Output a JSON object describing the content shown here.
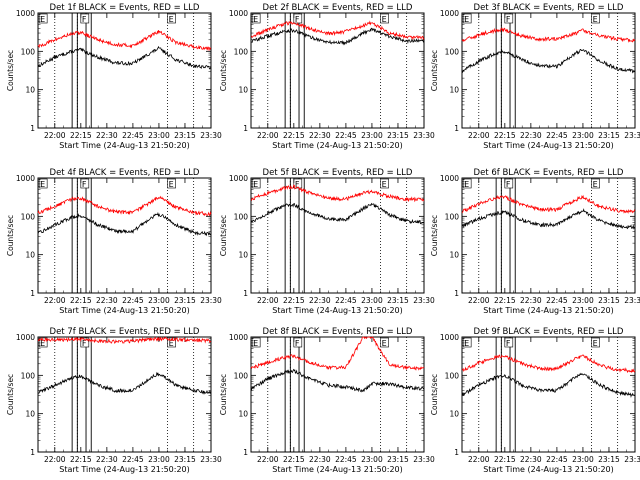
{
  "figure": {
    "x_ticks": [
      "22:00",
      "22:15",
      "22:30",
      "22:45",
      "23:00",
      "23:15",
      "23:30"
    ],
    "y_ticks": [
      "1",
      "10",
      "100",
      "1000"
    ],
    "xlabel": "Start Time (24-Aug-13 21:50:20)",
    "ylabel": "Counts/sec"
  },
  "colors": {
    "events": "#000000",
    "lld": "#ff0000",
    "background": "#ffffff"
  },
  "chart_data": [
    {
      "type": "line",
      "title": "Det 1f BLACK = Events, RED = LLD",
      "xlabel": "Start Time (24-Aug-13 21:50:20)",
      "ylabel": "Counts/sec",
      "yscale": "log",
      "ylim": [
        1,
        1000
      ],
      "x_ticks": [
        "22:00",
        "22:15",
        "22:30",
        "22:45",
        "23:00",
        "23:15",
        "23:30"
      ],
      "flag_labels": [
        "E",
        "F",
        "E"
      ],
      "x": [
        "21:50",
        "22:00",
        "22:10",
        "22:15",
        "22:25",
        "22:35",
        "22:45",
        "22:55",
        "23:00",
        "23:10",
        "23:20",
        "23:30"
      ],
      "series": [
        {
          "name": "BLACK = Events",
          "values": [
            40,
            70,
            100,
            110,
            70,
            50,
            48,
            90,
            120,
            60,
            42,
            38
          ]
        },
        {
          "name": "RED = LLD",
          "values": [
            130,
            200,
            290,
            310,
            200,
            150,
            140,
            250,
            330,
            170,
            130,
            120
          ]
        }
      ]
    },
    {
      "type": "line",
      "title": "Det 2f BLACK = Events, RED = LLD",
      "xlabel": "Start Time (24-Aug-13 21:50:20)",
      "ylabel": "Counts/sec",
      "yscale": "log",
      "ylim": [
        1,
        1000
      ],
      "x_ticks": [
        "22:00",
        "22:15",
        "22:30",
        "22:45",
        "23:00",
        "23:15",
        "23:30"
      ],
      "flag_labels": [
        "E",
        "F",
        "E"
      ],
      "x": [
        "21:50",
        "22:00",
        "22:10",
        "22:15",
        "22:25",
        "22:35",
        "22:45",
        "22:55",
        "23:00",
        "23:10",
        "23:20",
        "23:30"
      ],
      "series": [
        {
          "name": "BLACK = Events",
          "values": [
            180,
            250,
            340,
            350,
            230,
            170,
            170,
            300,
            390,
            240,
            190,
            180
          ]
        },
        {
          "name": "RED = LLD",
          "values": [
            230,
            370,
            530,
            560,
            380,
            290,
            330,
            470,
            560,
            300,
            240,
            230
          ]
        }
      ]
    },
    {
      "type": "line",
      "title": "Det 3f BLACK = Events, RED = LLD",
      "xlabel": "Start Time (24-Aug-13 21:50:20)",
      "ylabel": "Counts/sec",
      "yscale": "log",
      "ylim": [
        1,
        1000
      ],
      "x_ticks": [
        "22:00",
        "22:15",
        "22:30",
        "22:45",
        "23:00",
        "23:15",
        "23:30"
      ],
      "flag_labels": [
        "E",
        "F",
        "E"
      ],
      "x": [
        "21:50",
        "22:00",
        "22:10",
        "22:15",
        "22:25",
        "22:35",
        "22:45",
        "22:55",
        "23:00",
        "23:10",
        "23:20",
        "23:30"
      ],
      "series": [
        {
          "name": "BLACK = Events",
          "values": [
            30,
            55,
            90,
            100,
            60,
            42,
            40,
            85,
            110,
            55,
            35,
            30
          ]
        },
        {
          "name": "RED = LLD",
          "values": [
            180,
            270,
            350,
            370,
            250,
            210,
            210,
            280,
            360,
            250,
            210,
            190
          ]
        }
      ]
    },
    {
      "type": "line",
      "title": "Det 4f BLACK = Events, RED = LLD",
      "xlabel": "Start Time (24-Aug-13 21:50:20)",
      "ylabel": "Counts/sec",
      "yscale": "log",
      "ylim": [
        1,
        1000
      ],
      "x_ticks": [
        "22:00",
        "22:15",
        "22:30",
        "22:45",
        "23:00",
        "23:15",
        "23:30"
      ],
      "flag_labels": [
        "E",
        "F",
        "E"
      ],
      "x": [
        "21:50",
        "22:00",
        "22:10",
        "22:15",
        "22:25",
        "22:35",
        "22:45",
        "22:55",
        "23:00",
        "23:10",
        "23:20",
        "23:30"
      ],
      "series": [
        {
          "name": "BLACK = Events",
          "values": [
            35,
            60,
            95,
            105,
            60,
            42,
            40,
            90,
            115,
            60,
            38,
            34
          ]
        },
        {
          "name": "RED = LLD",
          "values": [
            120,
            180,
            280,
            300,
            180,
            130,
            125,
            230,
            320,
            170,
            125,
            115
          ]
        }
      ]
    },
    {
      "type": "line",
      "title": "Det 5f BLACK = Events, RED = LLD",
      "xlabel": "Start Time (24-Aug-13 21:50:20)",
      "ylabel": "Counts/sec",
      "yscale": "log",
      "ylim": [
        1,
        1000
      ],
      "x_ticks": [
        "22:00",
        "22:15",
        "22:30",
        "22:45",
        "23:00",
        "23:15",
        "23:30"
      ],
      "flag_labels": [
        "E",
        "F",
        "E"
      ],
      "x": [
        "21:50",
        "22:00",
        "22:10",
        "22:15",
        "22:25",
        "22:35",
        "22:45",
        "22:55",
        "23:00",
        "23:10",
        "23:20",
        "23:30"
      ],
      "series": [
        {
          "name": "BLACK = Events",
          "values": [
            70,
            120,
            190,
            200,
            120,
            85,
            80,
            160,
            210,
            110,
            75,
            70
          ]
        },
        {
          "name": "RED = LLD",
          "values": [
            280,
            400,
            560,
            590,
            400,
            290,
            280,
            410,
            440,
            330,
            280,
            270
          ]
        }
      ]
    },
    {
      "type": "line",
      "title": "Det 6f BLACK = Events, RED = LLD",
      "xlabel": "Start Time (24-Aug-13 21:50:20)",
      "ylabel": "Counts/sec",
      "yscale": "log",
      "ylim": [
        1,
        1000
      ],
      "x_ticks": [
        "22:00",
        "22:15",
        "22:30",
        "22:45",
        "23:00",
        "23:15",
        "23:30"
      ],
      "flag_labels": [
        "E",
        "F",
        "E"
      ],
      "x": [
        "21:50",
        "22:00",
        "22:10",
        "22:15",
        "22:25",
        "22:35",
        "22:45",
        "22:55",
        "23:00",
        "23:10",
        "23:20",
        "23:30"
      ],
      "series": [
        {
          "name": "BLACK = Events",
          "values": [
            55,
            85,
            120,
            130,
            80,
            60,
            60,
            110,
            140,
            75,
            55,
            52
          ]
        },
        {
          "name": "RED = LLD",
          "values": [
            130,
            210,
            300,
            320,
            200,
            150,
            150,
            260,
            320,
            180,
            140,
            135
          ]
        }
      ]
    },
    {
      "type": "line",
      "title": "Det 7f BLACK = Events, RED = LLD",
      "xlabel": "Start Time (24-Aug-13 21:50:20)",
      "ylabel": "Counts/sec",
      "yscale": "log",
      "ylim": [
        1,
        1000
      ],
      "x_ticks": [
        "22:00",
        "22:15",
        "22:30",
        "22:45",
        "23:00",
        "23:15",
        "23:30"
      ],
      "flag_labels": [
        "E",
        "F",
        "E"
      ],
      "x": [
        "21:50",
        "22:00",
        "22:10",
        "22:15",
        "22:25",
        "22:35",
        "22:45",
        "22:55",
        "23:00",
        "23:10",
        "23:20",
        "23:30"
      ],
      "series": [
        {
          "name": "BLACK = Events",
          "values": [
            35,
            55,
            85,
            95,
            55,
            40,
            40,
            85,
            110,
            55,
            40,
            35
          ]
        },
        {
          "name": "RED = LLD",
          "values": [
            850,
            830,
            870,
            880,
            800,
            760,
            780,
            870,
            900,
            860,
            820,
            800
          ]
        }
      ]
    },
    {
      "type": "line",
      "title": "Det 8f BLACK = Events, RED = LLD",
      "xlabel": "Start Time (24-Aug-13 21:50:20)",
      "ylabel": "Counts/sec",
      "yscale": "log",
      "ylim": [
        1,
        1000
      ],
      "x_ticks": [
        "22:00",
        "22:15",
        "22:30",
        "22:45",
        "23:00",
        "23:15",
        "23:30"
      ],
      "flag_labels": [
        "E",
        "F",
        "E"
      ],
      "x": [
        "21:50",
        "22:00",
        "22:10",
        "22:15",
        "22:25",
        "22:35",
        "22:45",
        "22:55",
        "23:00",
        "23:10",
        "23:20",
        "23:30"
      ],
      "series": [
        {
          "name": "BLACK = Events",
          "values": [
            45,
            80,
            120,
            130,
            80,
            55,
            50,
            40,
            60,
            60,
            48,
            45
          ]
        },
        {
          "name": "RED = LLD",
          "values": [
            150,
            220,
            300,
            320,
            210,
            160,
            160,
            1000,
            1000,
            190,
            160,
            150
          ]
        }
      ]
    },
    {
      "type": "line",
      "title": "Det 9f BLACK = Events, RED = LLD",
      "xlabel": "Start Time (24-Aug-13 21:50:20)",
      "ylabel": "Counts/sec",
      "yscale": "log",
      "ylim": [
        1,
        1000
      ],
      "x_ticks": [
        "22:00",
        "22:15",
        "22:30",
        "22:45",
        "23:00",
        "23:15",
        "23:30"
      ],
      "flag_labels": [
        "E",
        "F",
        "E"
      ],
      "x": [
        "21:50",
        "22:00",
        "22:10",
        "22:15",
        "22:25",
        "22:35",
        "22:45",
        "22:55",
        "23:00",
        "23:10",
        "23:20",
        "23:30"
      ],
      "series": [
        {
          "name": "BLACK = Events",
          "values": [
            30,
            55,
            90,
            100,
            55,
            40,
            40,
            85,
            110,
            55,
            35,
            30
          ]
        },
        {
          "name": "RED = LLD",
          "values": [
            130,
            210,
            300,
            320,
            200,
            150,
            150,
            260,
            320,
            180,
            140,
            130
          ]
        }
      ]
    }
  ]
}
